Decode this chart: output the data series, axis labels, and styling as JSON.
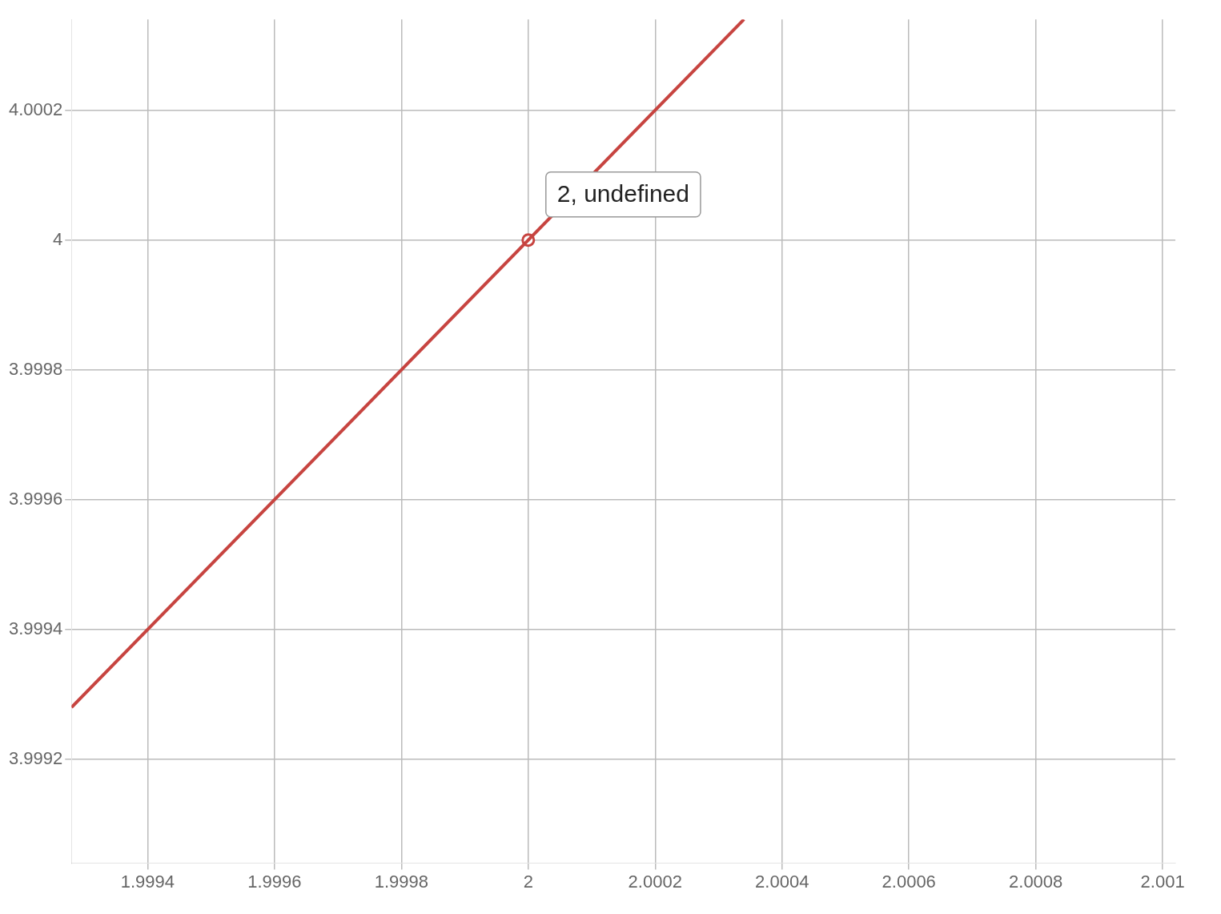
{
  "chart_data": {
    "type": "line",
    "xlim": [
      1.99928,
      2.00102
    ],
    "ylim": [
      3.99904,
      4.00034
    ],
    "xticks": [
      1.9994,
      1.9996,
      1.9998,
      2,
      2.0002,
      2.0004,
      2.0006,
      2.0008,
      {
        "value": 2.001,
        "label": "2.001"
      }
    ],
    "yticks": [
      3.9992,
      3.9994,
      3.9996,
      3.9998,
      4,
      4.0002
    ],
    "grid": true,
    "legend": false,
    "series": [
      {
        "color": "#c74440",
        "x": [
          1.99928,
          2.00034
        ],
        "values": [
          3.99928,
          4.00034
        ],
        "marker": "none",
        "line_style": "solid"
      },
      {
        "type": "scatter",
        "color": "#c74440",
        "x": [
          2
        ],
        "values": [
          4
        ],
        "marker": "circle"
      }
    ],
    "annotations": [
      {
        "text": "2, undefined",
        "x": 2,
        "y": 4
      }
    ]
  }
}
